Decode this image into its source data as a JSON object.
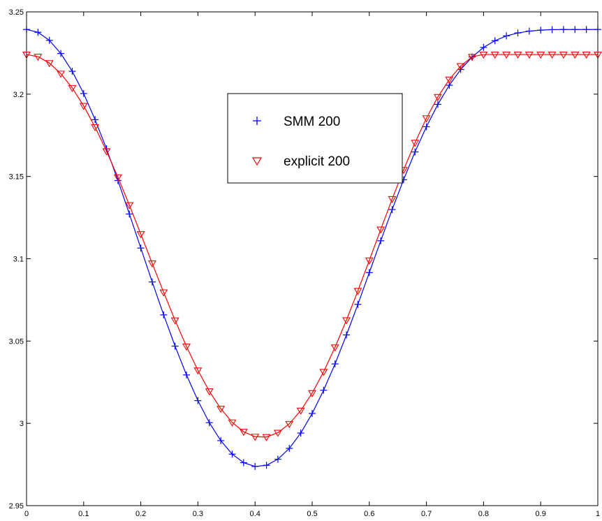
{
  "chart_data": {
    "type": "line",
    "title": "",
    "xlabel": "",
    "ylabel": "",
    "xlim": [
      0,
      1
    ],
    "ylim": [
      2.95,
      3.25
    ],
    "xticks": [
      "0",
      "0.1",
      "0.2",
      "0.3",
      "0.4",
      "0.5",
      "0.6",
      "0.7",
      "0.8",
      "0.9",
      "1"
    ],
    "yticks": [
      "2.95",
      "3",
      "3.05",
      "3.1",
      "3.15",
      "3.2",
      "3.25"
    ],
    "grid": false,
    "legend_position": "top-center",
    "series": [
      {
        "name": "SMM 200",
        "color": "#0000ff",
        "marker": "plus",
        "x": [
          0,
          0.02,
          0.04,
          0.06,
          0.08,
          0.1,
          0.12,
          0.14,
          0.16,
          0.18,
          0.2,
          0.22,
          0.24,
          0.26,
          0.28,
          0.3,
          0.32,
          0.34,
          0.36,
          0.38,
          0.4,
          0.42,
          0.44,
          0.46,
          0.48,
          0.5,
          0.52,
          0.54,
          0.56,
          0.58,
          0.6,
          0.62,
          0.64,
          0.66,
          0.68,
          0.7,
          0.72,
          0.74,
          0.76,
          0.78,
          0.8,
          0.82,
          0.84,
          0.86,
          0.88,
          0.9,
          0.92,
          0.94,
          0.96,
          0.98,
          1
        ],
        "y": [
          3.2393,
          3.2376,
          3.2327,
          3.2247,
          3.2139,
          3.2004,
          3.1845,
          3.1668,
          3.1475,
          3.1272,
          3.1065,
          3.0859,
          3.0659,
          3.0469,
          3.0294,
          3.0138,
          3.0004,
          2.9895,
          2.9813,
          2.9761,
          2.9738,
          2.9745,
          2.9782,
          2.9848,
          2.9941,
          3.006,
          3.0201,
          3.0361,
          3.0537,
          3.0723,
          3.0916,
          3.1109,
          3.1299,
          3.148,
          3.1649,
          3.1802,
          3.1938,
          3.2054,
          3.215,
          3.2226,
          3.2284,
          3.2325,
          3.2354,
          3.2372,
          3.2383,
          3.2389,
          3.2392,
          3.2393,
          3.2393,
          3.2393,
          3.2393
        ]
      },
      {
        "name": "explicit 200",
        "color": "#ff0000",
        "marker": "triangle-down",
        "x": [
          0,
          0.02,
          0.04,
          0.06,
          0.08,
          0.1,
          0.12,
          0.14,
          0.16,
          0.18,
          0.2,
          0.22,
          0.24,
          0.26,
          0.28,
          0.3,
          0.32,
          0.34,
          0.36,
          0.38,
          0.4,
          0.42,
          0.44,
          0.46,
          0.48,
          0.5,
          0.52,
          0.54,
          0.56,
          0.58,
          0.6,
          0.62,
          0.64,
          0.66,
          0.68,
          0.7,
          0.72,
          0.74,
          0.76,
          0.78,
          0.8,
          0.82,
          0.84,
          0.86,
          0.88,
          0.9,
          0.92,
          0.94,
          0.96,
          0.98,
          1
        ],
        "y": [
          3.2241,
          3.2228,
          3.2189,
          3.2125,
          3.2038,
          3.1929,
          3.18,
          3.1654,
          3.1495,
          3.1326,
          3.115,
          3.0972,
          3.0796,
          3.0626,
          3.0467,
          3.0322,
          3.0195,
          3.0089,
          3.0006,
          2.9949,
          2.9919,
          2.9917,
          2.9943,
          2.9997,
          3.0078,
          3.0184,
          3.0313,
          3.0462,
          3.0627,
          3.0805,
          3.099,
          3.1178,
          3.1363,
          3.154,
          3.1705,
          3.1854,
          3.1983,
          3.2089,
          3.2171,
          3.2227,
          3.2241,
          3.2241,
          3.2241,
          3.2241,
          3.2241,
          3.2241,
          3.2241,
          3.2241,
          3.2241,
          3.2241,
          3.2241
        ]
      }
    ]
  }
}
